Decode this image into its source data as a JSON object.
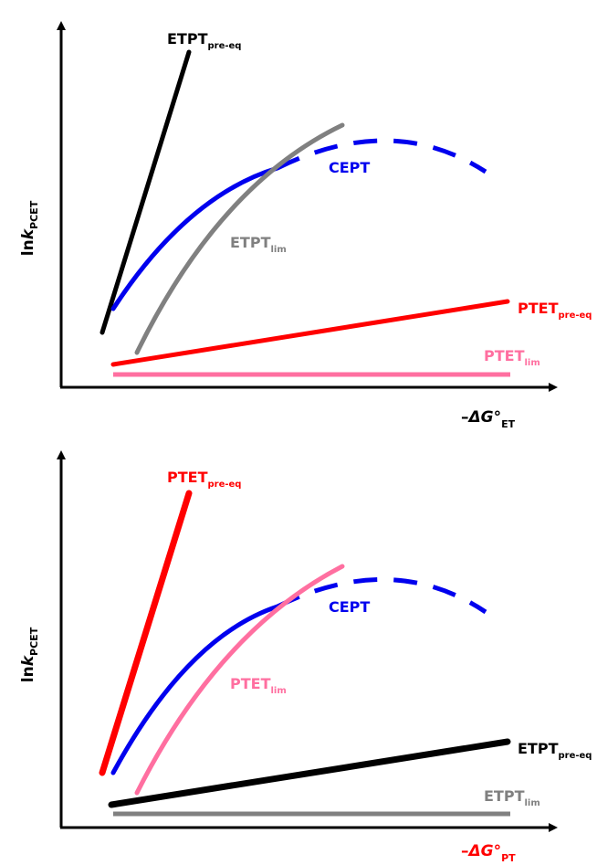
{
  "colors": {
    "black": "#000000",
    "blue": "#0000ee",
    "gray": "#808080",
    "red": "#ff0000",
    "pink": "#ff6fa0"
  },
  "top_panel": {
    "y_axis": {
      "main": "ln",
      "italic": "k",
      "sub": "PCET"
    },
    "x_axis": {
      "prefix": "–",
      "italic": "ΔG",
      "deg": "°",
      "sub": "ET",
      "color": "#000000"
    },
    "labels": {
      "etpt_pre": {
        "main": "ETPT",
        "sub": "pre-eq",
        "color": "#000000"
      },
      "cept": {
        "main": "CEPT",
        "color": "#0000ee"
      },
      "etpt_lim": {
        "main": "ETPT",
        "sub": "lim",
        "color": "#808080"
      },
      "ptet_pre": {
        "main": "PTET",
        "sub": "pre-eq",
        "color": "#ff0000"
      },
      "ptet_lim": {
        "main": "PTET",
        "sub": "lim",
        "color": "#ff6fa0"
      }
    }
  },
  "bottom_panel": {
    "y_axis": {
      "main": "ln",
      "italic": "k",
      "sub": "PCET"
    },
    "x_axis": {
      "prefix": "–",
      "italic": "ΔG",
      "deg": "°",
      "sub": "PT",
      "color": "#ff0000"
    },
    "labels": {
      "ptet_pre": {
        "main": "PTET",
        "sub": "pre-eq",
        "color": "#ff0000"
      },
      "cept": {
        "main": "CEPT",
        "color": "#0000ee"
      },
      "ptet_lim": {
        "main": "PTET",
        "sub": "lim",
        "color": "#ff6fa0"
      },
      "etpt_pre": {
        "main": "ETPT",
        "sub": "pre-eq",
        "color": "#000000"
      },
      "etpt_lim": {
        "main": "ETPT",
        "sub": "lim",
        "color": "#808080"
      }
    }
  }
}
